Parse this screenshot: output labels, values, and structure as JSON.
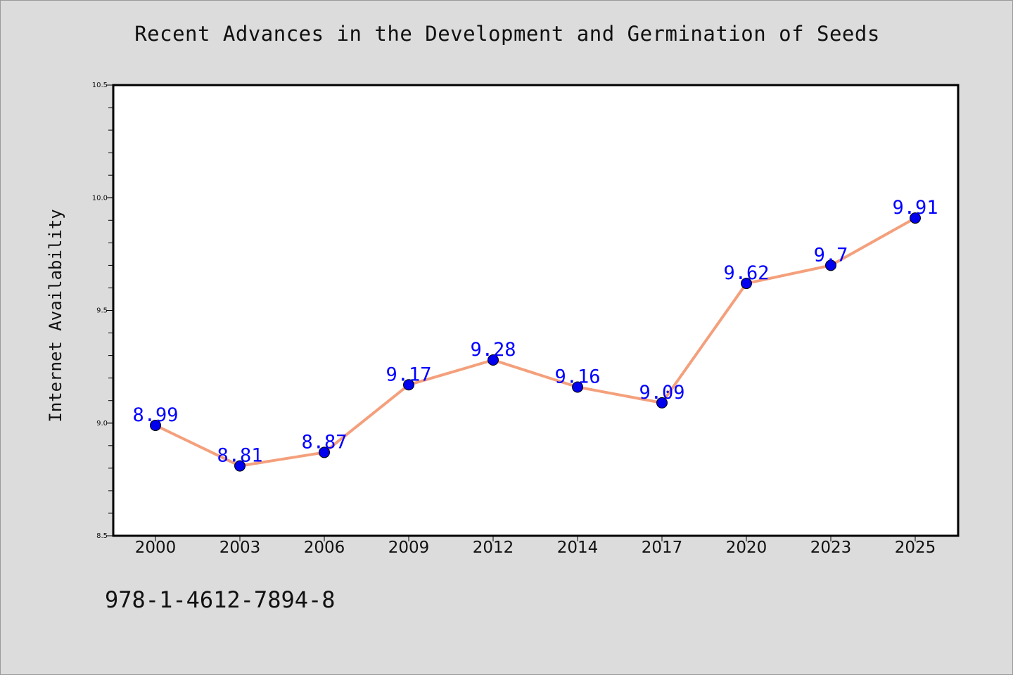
{
  "chart_data": {
    "type": "line",
    "title": "Recent Advances in the Development and Germination of Seeds",
    "xlabel": "",
    "ylabel": "Internet Availability",
    "categories": [
      "2000",
      "2003",
      "2006",
      "2009",
      "2012",
      "2014",
      "2017",
      "2020",
      "2023",
      "2025"
    ],
    "series": [
      {
        "values": [
          8.99,
          8.81,
          8.87,
          9.17,
          9.28,
          9.16,
          9.09,
          9.62,
          9.7,
          9.91
        ],
        "data_labels": [
          "8.99",
          "8.81",
          "8.87",
          "9.17",
          "9.28",
          "9.16",
          "9.09",
          "9.62",
          "9.7",
          "9.91"
        ],
        "line_color": "#f4a07c",
        "marker_color": "#0000ee"
      }
    ],
    "ylim": [
      8.5,
      10.5
    ],
    "y_ticks": [
      "8.5",
      "9.0",
      "9.5",
      "10.0",
      "10.5"
    ],
    "grid": false,
    "legend": "none"
  },
  "footer": {
    "isbn": "978-1-4612-7894-8"
  },
  "colors": {
    "background": "#dcdcdc",
    "plot_background": "#ffffff",
    "data_label": "#0000ff"
  }
}
